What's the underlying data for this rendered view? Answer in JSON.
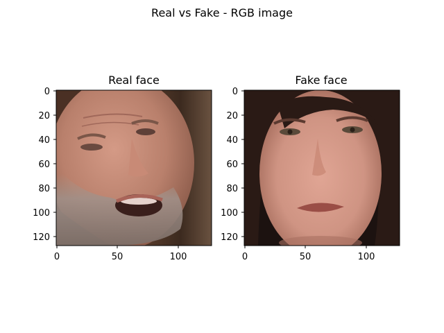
{
  "figure": {
    "title": "Real vs Fake - RGB image"
  },
  "panels": [
    {
      "title": "Real face",
      "image_subject": "real-face-photo",
      "x_ticks": [
        "0",
        "50",
        "100"
      ],
      "y_ticks": [
        "0",
        "20",
        "40",
        "60",
        "80",
        "100",
        "120"
      ]
    },
    {
      "title": "Fake face",
      "image_subject": "fake-face-photo",
      "x_ticks": [
        "0",
        "50",
        "100"
      ],
      "y_ticks": [
        "0",
        "20",
        "40",
        "60",
        "80",
        "100",
        "120"
      ]
    }
  ],
  "colors": {
    "background": "#ffffff",
    "axis": "#000000"
  }
}
